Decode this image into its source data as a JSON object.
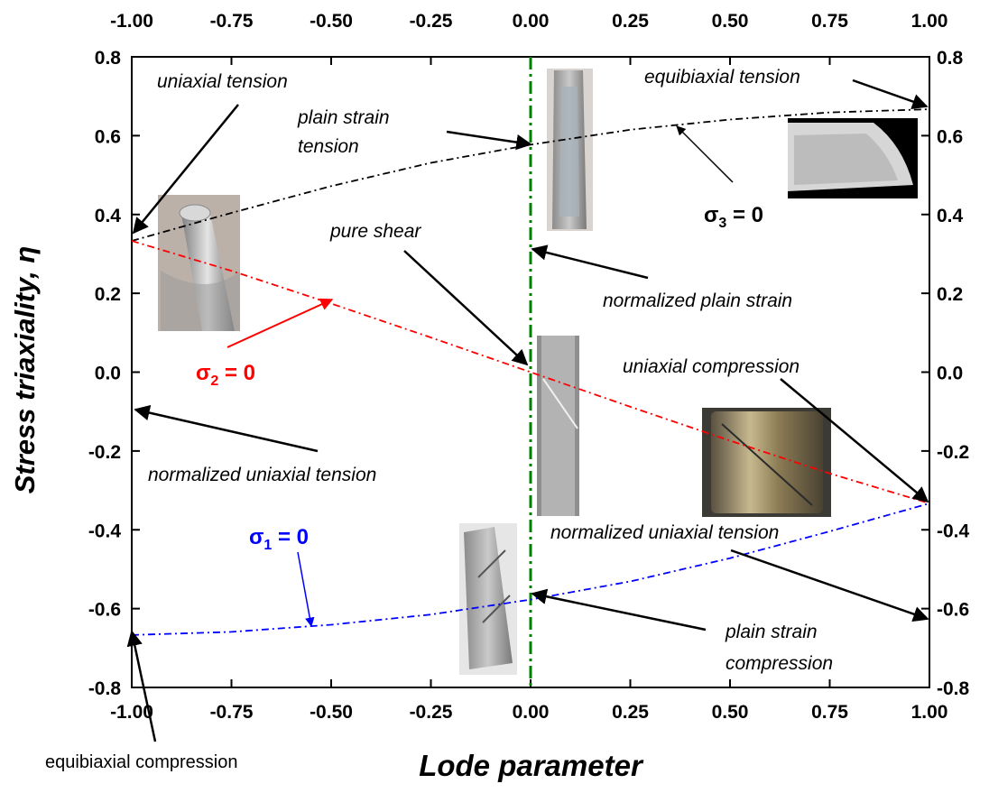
{
  "chart_data": {
    "type": "line",
    "xlabel": "Lode parameter",
    "ylabel": "Stress triaxiality, η",
    "xlim": [
      -1.0,
      1.0
    ],
    "ylim": [
      -0.8,
      0.8
    ],
    "x_ticks": [
      "-1.00",
      "-0.75",
      "-0.50",
      "-0.25",
      "0.00",
      "0.25",
      "0.50",
      "0.75",
      "1.00"
    ],
    "y_ticks": [
      "0.8",
      "0.6",
      "0.4",
      "0.2",
      "0.0",
      "-0.2",
      "-0.4",
      "-0.6",
      "-0.8"
    ],
    "y_ticks_right": [
      "0.8",
      "0.6",
      "0.4",
      "0.2",
      "0.0",
      "-0.2",
      "-0.4",
      "-0.6",
      "-0.8"
    ],
    "series": [
      {
        "name": "σ3 = 0",
        "color": "#000000",
        "x": [
          -1.0,
          -0.75,
          -0.5,
          -0.25,
          0.0,
          0.25,
          0.5,
          0.75,
          1.0
        ],
        "y": [
          0.333,
          0.404,
          0.472,
          0.531,
          0.577,
          0.615,
          0.641,
          0.659,
          0.667
        ]
      },
      {
        "name": "σ2 = 0",
        "color": "#ff0000",
        "x": [
          -1.0,
          -0.75,
          -0.5,
          -0.25,
          0.0,
          0.25,
          0.5,
          0.75,
          1.0
        ],
        "y": [
          0.333,
          0.257,
          0.174,
          0.088,
          0.0,
          -0.088,
          -0.174,
          -0.257,
          -0.333
        ]
      },
      {
        "name": "σ1 = 0",
        "color": "#0000ff",
        "x": [
          -1.0,
          -0.75,
          -0.5,
          -0.25,
          0.0,
          0.25,
          0.5,
          0.75,
          1.0
        ],
        "y": [
          -0.667,
          -0.659,
          -0.641,
          -0.615,
          -0.577,
          -0.531,
          -0.472,
          -0.404,
          -0.333
        ]
      }
    ],
    "vertical_line": {
      "x": 0.0,
      "color": "#008000"
    },
    "legend_labels": {
      "s3": {
        "sym": "σ",
        "sub": "3",
        "rest": " = 0"
      },
      "s2": {
        "sym": "σ",
        "sub": "2",
        "rest": " = 0"
      },
      "s1": {
        "sym": "σ",
        "sub": "1",
        "rest": " = 0"
      }
    },
    "annotations": {
      "uniaxial_tension": "uniaxial tension",
      "plain_strain_tension_1": "plain strain",
      "plain_strain_tension_2": "tension",
      "equibiaxial_tension": "equibiaxial tension",
      "pure_shear": "pure shear",
      "normalized_plain_strain": "normalized plain strain",
      "uniaxial_compression": "uniaxial compression",
      "normalized_uniaxial_tension_left": "normalized uniaxial tension",
      "normalized_uniaxial_tension_right": "normalized uniaxial tension",
      "plain_strain_compression_1": "plain strain",
      "plain_strain_compression_2": "compression",
      "equibiaxial_compression": "equibiaxial compression"
    }
  }
}
